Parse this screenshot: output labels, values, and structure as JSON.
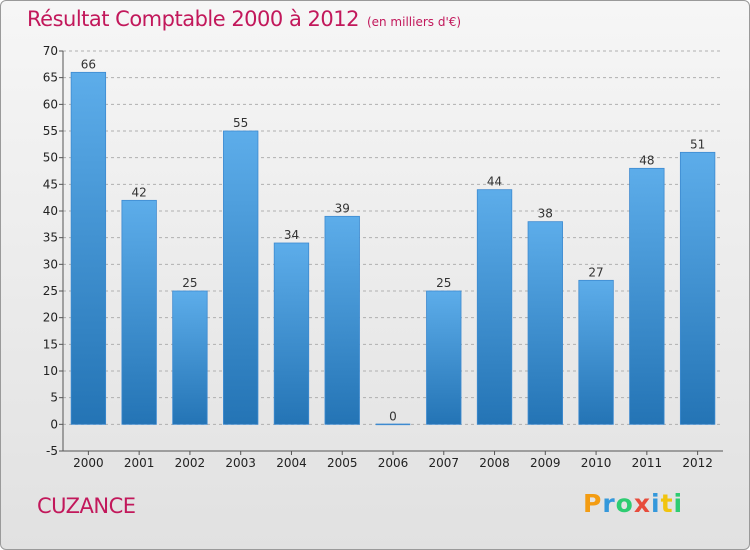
{
  "header": {
    "title": "Résultat Comptable 2000 à 2012",
    "subtitle": "(en milliers d'€)"
  },
  "footer": {
    "city": "CUZANCE",
    "logo_text": "Proxiti",
    "logo_letters": [
      {
        "char": "P",
        "color": "#f39c12"
      },
      {
        "char": "r",
        "color": "#3498db"
      },
      {
        "char": "o",
        "color": "#2ecc71"
      },
      {
        "char": "x",
        "color": "#e74c3c"
      },
      {
        "char": "i",
        "color": "#3498db"
      },
      {
        "char": "t",
        "color": "#f1c40f"
      },
      {
        "char": "i",
        "color": "#2ecc71"
      }
    ]
  },
  "colors": {
    "bar_top": "#5dadea",
    "bar_bottom": "#2474b5",
    "grid": "#b0b0b0",
    "accent": "#c2185b"
  },
  "chart_data": {
    "type": "bar",
    "title": "Résultat Comptable 2000 à 2012",
    "subtitle": "(en milliers d'€)",
    "categories": [
      "2000",
      "2001",
      "2002",
      "2003",
      "2004",
      "2005",
      "2006",
      "2007",
      "2008",
      "2009",
      "2010",
      "2011",
      "2012"
    ],
    "values": [
      66,
      42,
      25,
      55,
      34,
      39,
      0,
      25,
      44,
      38,
      27,
      48,
      51
    ],
    "ylim": [
      -5,
      70
    ],
    "yticks": [
      -5,
      0,
      5,
      10,
      15,
      20,
      25,
      30,
      35,
      40,
      45,
      50,
      55,
      60,
      65,
      70
    ],
    "grid": true,
    "grid_style": "dashed-horizontal",
    "data_labels": true
  }
}
